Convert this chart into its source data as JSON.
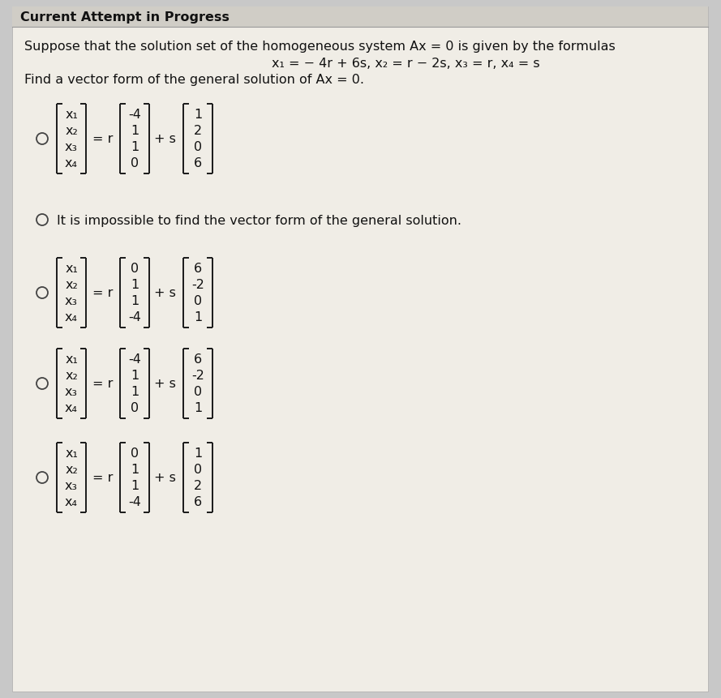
{
  "title": "Current Attempt in Progress",
  "bg_color": "#c8c8c8",
  "title_bg": "#d8d8d8",
  "white_bg": "#f0ede6",
  "text_color": "#1a1a1a",
  "problem_line1": "Suppose that the solution set of the homogeneous system Ax = 0 is given by the formulas",
  "problem_line2": "x₁ = − 4r + 6s, x₂ = r − 2s, x₃ = r, x₄ = s",
  "problem_line3": "Find a vector form of the general solution of Ax = 0.",
  "options": [
    {
      "type": "matrix",
      "vec_r": [
        "-4",
        "1",
        "1",
        "0"
      ],
      "vec_s": [
        "1",
        "2",
        "0",
        "6"
      ],
      "selected": false
    },
    {
      "type": "text",
      "text": "It is impossible to find the vector form of the general solution.",
      "selected": false
    },
    {
      "type": "matrix",
      "vec_r": [
        "0",
        "1",
        "1",
        "-4"
      ],
      "vec_s": [
        "6",
        "-2",
        "0",
        "1"
      ],
      "selected": false
    },
    {
      "type": "matrix",
      "vec_r": [
        "-4",
        "1",
        "1",
        "0"
      ],
      "vec_s": [
        "6",
        "-2",
        "0",
        "1"
      ],
      "selected": false
    },
    {
      "type": "matrix",
      "vec_r": [
        "0",
        "1",
        "1",
        "-4"
      ],
      "vec_s": [
        "1",
        "0",
        "2",
        "6"
      ],
      "selected": false
    }
  ],
  "lhs_labels": [
    "x₁",
    "x₂",
    "x₃",
    "x₄"
  ],
  "figwidth": 8.89,
  "figheight": 8.62,
  "dpi": 100
}
